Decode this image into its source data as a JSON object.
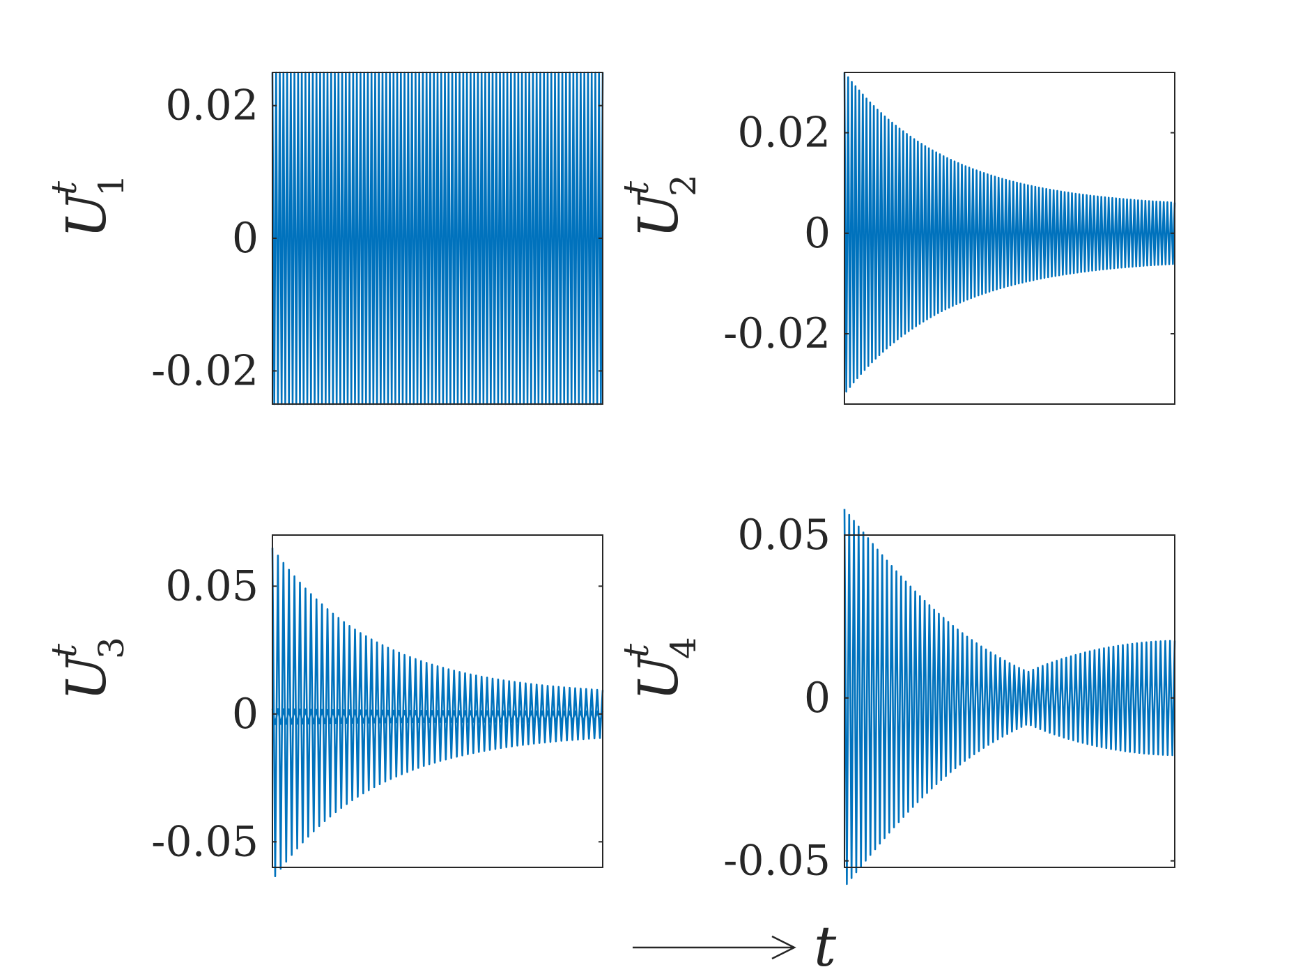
{
  "time_label": "t",
  "chart_data": [
    {
      "type": "line",
      "ylabel": {
        "base": "U",
        "sup": "t",
        "sub": "1"
      },
      "ylim": [
        -0.025,
        0.025
      ],
      "yticks": [
        -0.02,
        0,
        0.02
      ],
      "ytick_labels": [
        "-0.02",
        "0",
        "0.02"
      ],
      "xticks": [],
      "grid": false,
      "series": [
        {
          "color": "#0072BD",
          "cycles": 90,
          "envelope": "constant",
          "amplitude": 0.025,
          "final_amplitude": 0.025,
          "offset": 0
        }
      ]
    },
    {
      "type": "line",
      "ylabel": {
        "base": "U",
        "sup": "t",
        "sub": "2"
      },
      "ylim": [
        -0.034,
        0.032
      ],
      "yticks": [
        -0.02,
        0,
        0.02
      ],
      "ytick_labels": [
        "-0.02",
        "0",
        "0.02"
      ],
      "xticks": [],
      "grid": false,
      "series": [
        {
          "color": "#0072BD",
          "cycles": 90,
          "envelope": "decaying",
          "amplitude": 0.032,
          "final_amplitude": 0.005,
          "offset": 0
        }
      ]
    },
    {
      "type": "line",
      "ylabel": {
        "base": "U",
        "sup": "t",
        "sub": "3"
      },
      "ylim": [
        -0.06,
        0.07
      ],
      "yticks": [
        -0.05,
        0,
        0.05
      ],
      "ytick_labels": [
        "-0.05",
        "0",
        "0.05"
      ],
      "xticks": [],
      "grid": false,
      "series": [
        {
          "color": "#0072BD",
          "cycles": 60,
          "envelope": "decaying",
          "amplitude": 0.065,
          "final_amplitude": 0.007,
          "offset": 0
        },
        {
          "color": "#0072BD",
          "cycles": 60,
          "envelope": "decaying",
          "amplitude": 0.003,
          "final_amplitude": 0.002,
          "offset": -0.001
        }
      ]
    },
    {
      "type": "line",
      "ylabel": {
        "base": "U",
        "sup": "t",
        "sub": "4"
      },
      "ylim": [
        -0.052,
        0.05
      ],
      "yticks": [
        -0.05,
        0,
        0.05
      ],
      "ytick_labels": [
        "-0.05",
        "0",
        "0.05"
      ],
      "xticks": [],
      "grid": false,
      "series": [
        {
          "color": "#0072BD",
          "cycles": 70,
          "envelope": "beat",
          "amplitude": 0.05,
          "final_amplitude": 0.008,
          "offset": 0
        }
      ]
    }
  ]
}
